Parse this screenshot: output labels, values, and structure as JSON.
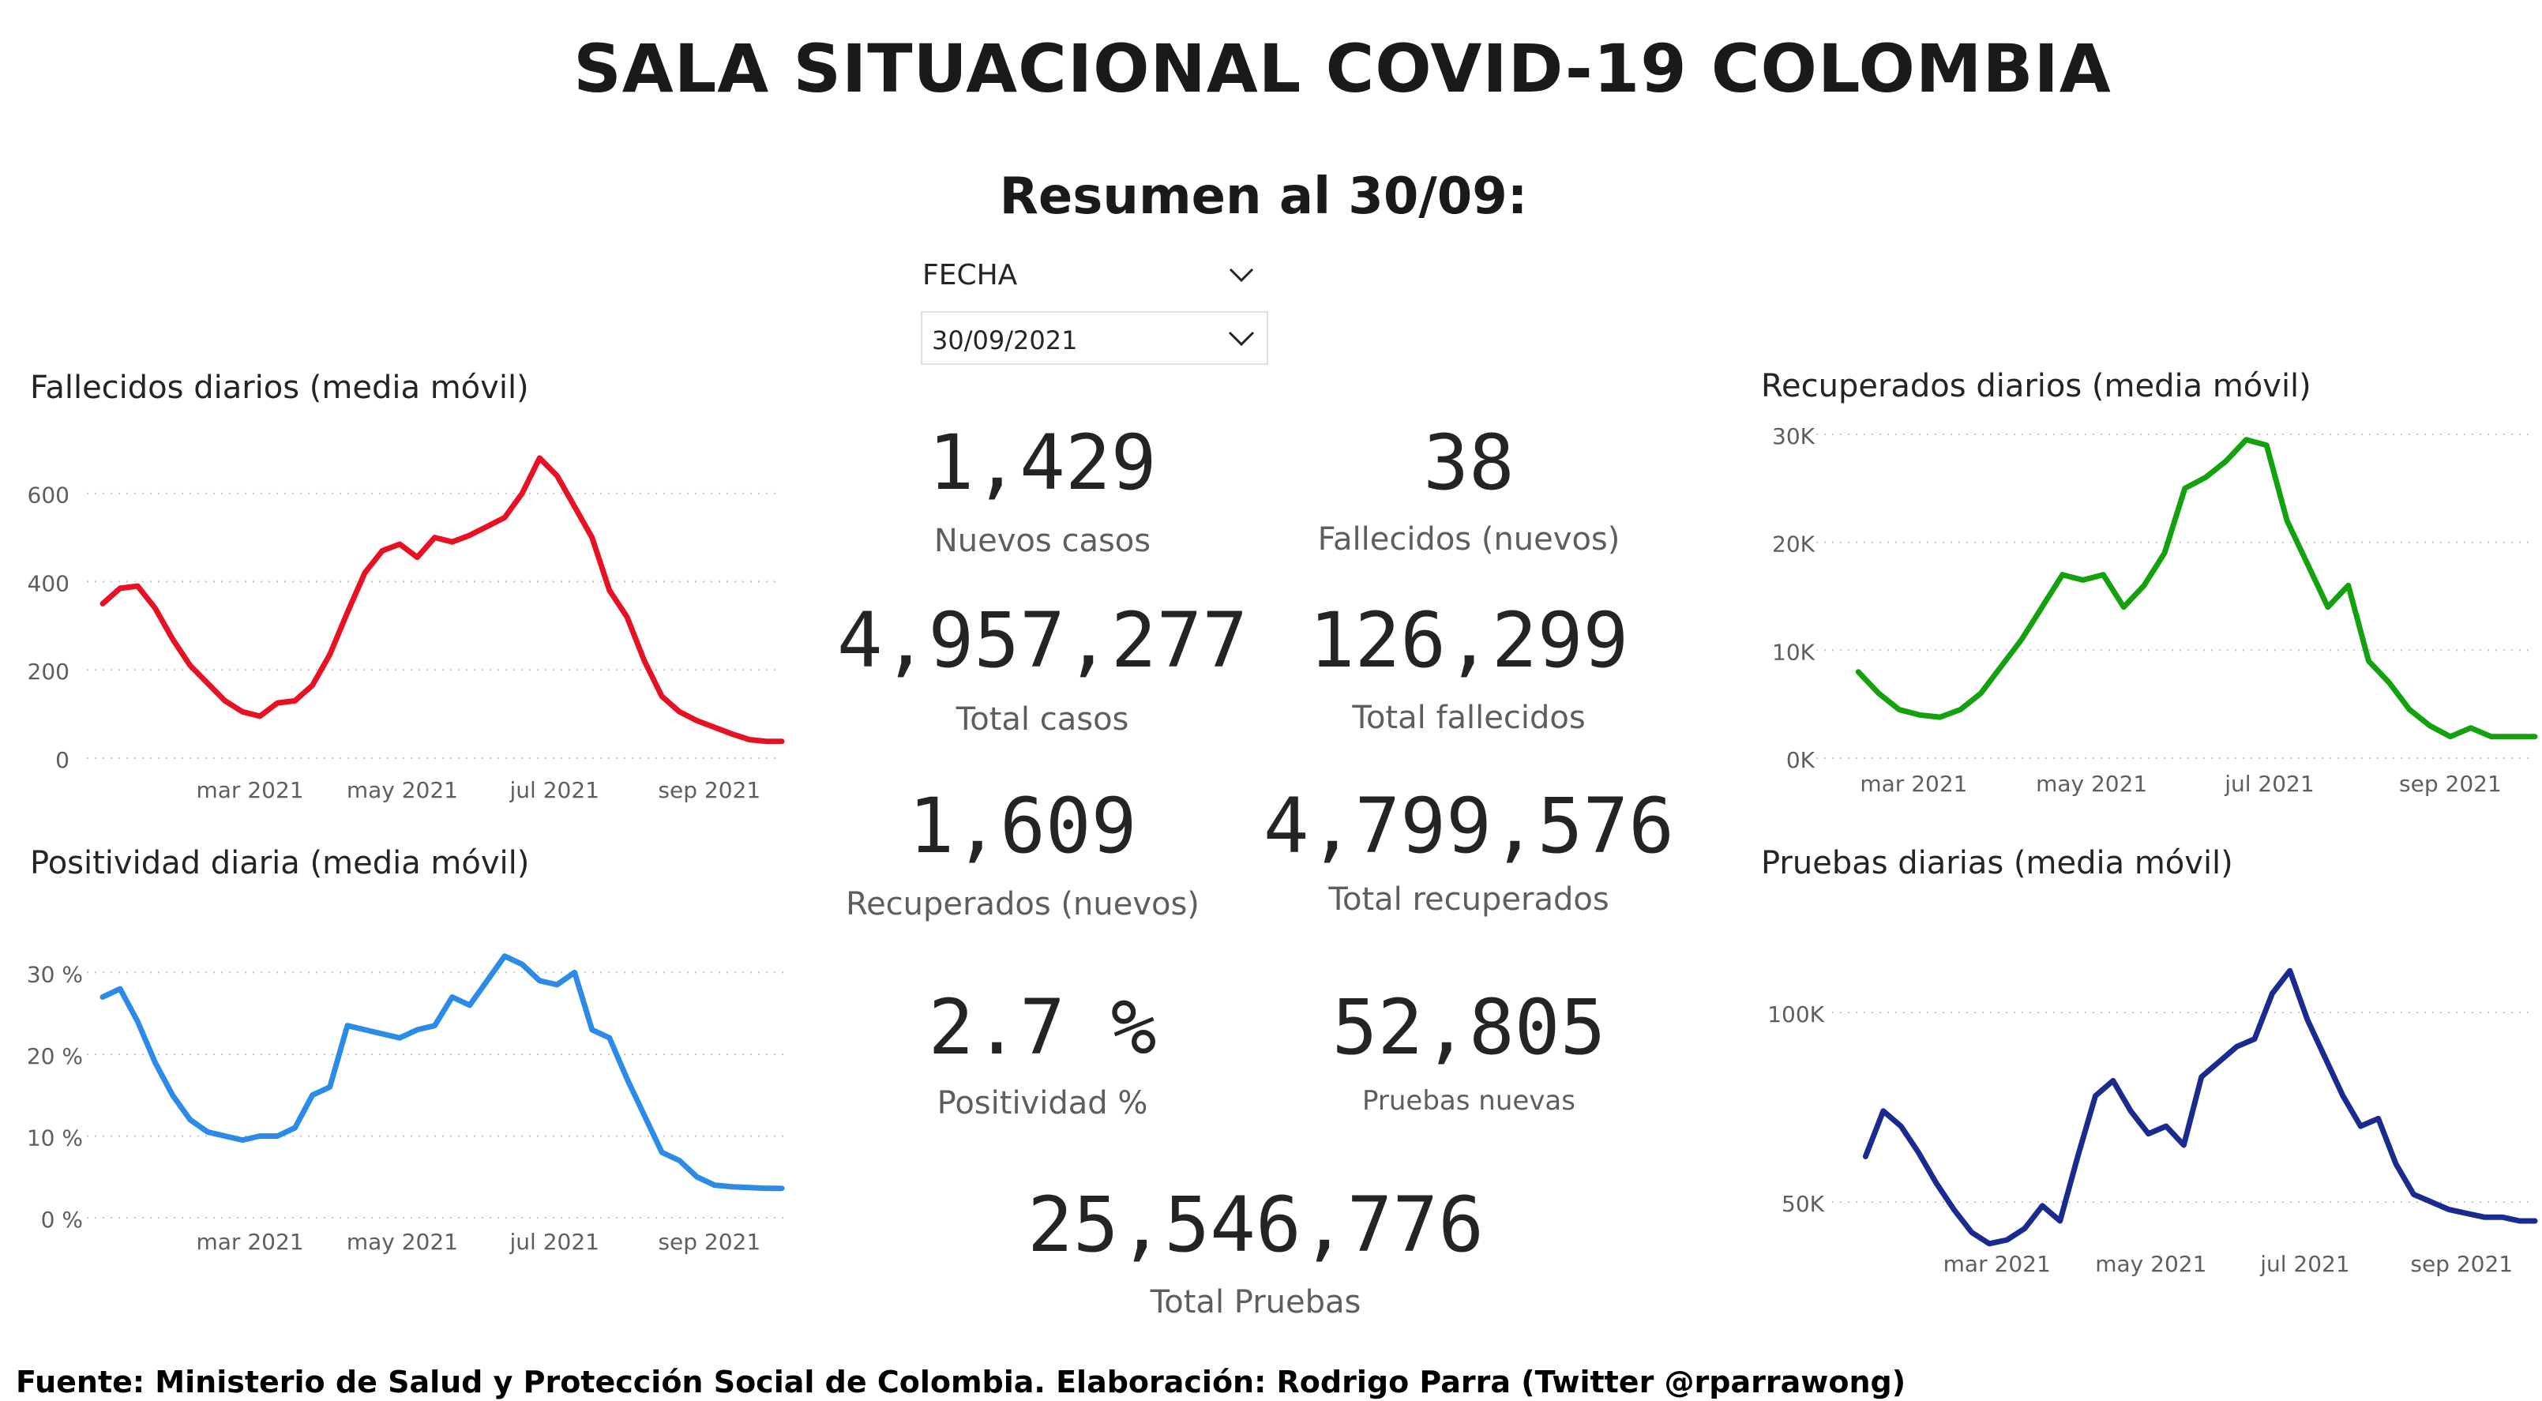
{
  "title": "SALA SITUACIONAL COVID-19 COLOMBIA",
  "subtitle": "Resumen al 30/09:",
  "slicer": {
    "label": "FECHA",
    "value": "30/09/2021"
  },
  "kpis": [
    {
      "value": "1,429",
      "label": "Nuevos casos"
    },
    {
      "value": "38",
      "label": "Fallecidos (nuevos)"
    },
    {
      "value": "4,957,277",
      "label": "Total casos"
    },
    {
      "value": "126,299",
      "label": "Total fallecidos"
    },
    {
      "value": "1,609",
      "label": "Recuperados (nuevos)"
    },
    {
      "value": "4,799,576",
      "label": "Total recuperados"
    },
    {
      "value": "2.7 %",
      "label": "Positividad %"
    },
    {
      "value": "52,805",
      "label": "Pruebas nuevas"
    },
    {
      "value": "25,546,776",
      "label": "Total Pruebas"
    }
  ],
  "footer": "Fuente: Ministerio de Salud y Protección Social de Colombia. Elaboración: Rodrigo Parra (Twitter @rparrawong)",
  "chart_data": [
    {
      "id": "fallecidos",
      "type": "line",
      "title": "Fallecidos diarios (media móvil)",
      "color": "#e81123",
      "ylim": [
        0,
        680
      ],
      "yticks": [
        0,
        200,
        400,
        600
      ],
      "ytick_labels": [
        "0",
        "200",
        "400",
        "600"
      ],
      "xtick_labels": [
        "mar 2021",
        "may 2021",
        "jul 2021",
        "sep 2021"
      ],
      "xtick_dates": [
        "2021-03-01",
        "2021-05-01",
        "2021-07-01",
        "2021-09-01"
      ],
      "xlim": [
        "2021-01-01",
        "2021-09-30"
      ],
      "grid": true,
      "x": [
        "2021-01-01",
        "2021-01-08",
        "2021-01-15",
        "2021-01-22",
        "2021-01-29",
        "2021-02-05",
        "2021-02-12",
        "2021-02-19",
        "2021-02-26",
        "2021-03-05",
        "2021-03-12",
        "2021-03-19",
        "2021-03-26",
        "2021-04-02",
        "2021-04-09",
        "2021-04-16",
        "2021-04-23",
        "2021-04-30",
        "2021-05-07",
        "2021-05-14",
        "2021-05-21",
        "2021-05-28",
        "2021-06-04",
        "2021-06-11",
        "2021-06-18",
        "2021-06-25",
        "2021-07-02",
        "2021-07-09",
        "2021-07-16",
        "2021-07-23",
        "2021-07-30",
        "2021-08-06",
        "2021-08-13",
        "2021-08-20",
        "2021-08-27",
        "2021-09-03",
        "2021-09-10",
        "2021-09-17",
        "2021-09-24",
        "2021-09-30"
      ],
      "y": [
        350,
        385,
        390,
        340,
        270,
        210,
        170,
        130,
        105,
        95,
        125,
        130,
        165,
        235,
        330,
        420,
        470,
        485,
        455,
        500,
        490,
        505,
        525,
        545,
        600,
        680,
        640,
        570,
        500,
        380,
        320,
        220,
        140,
        105,
        85,
        70,
        55,
        42,
        38,
        38
      ]
    },
    {
      "id": "positividad",
      "type": "line",
      "title": "Positividad diaria (media móvil)",
      "color": "#2b8be6",
      "ylim": [
        0,
        34
      ],
      "yticks": [
        0,
        10,
        20,
        30
      ],
      "ytick_labels": [
        "0 %",
        "10 %",
        "20 %",
        "30 %"
      ],
      "xtick_labels": [
        "mar 2021",
        "may 2021",
        "jul 2021",
        "sep 2021"
      ],
      "xtick_dates": [
        "2021-03-01",
        "2021-05-01",
        "2021-07-01",
        "2021-09-01"
      ],
      "xlim": [
        "2021-01-01",
        "2021-09-30"
      ],
      "grid": true,
      "x": [
        "2021-01-01",
        "2021-01-08",
        "2021-01-15",
        "2021-01-22",
        "2021-01-29",
        "2021-02-05",
        "2021-02-12",
        "2021-02-19",
        "2021-02-26",
        "2021-03-05",
        "2021-03-12",
        "2021-03-19",
        "2021-03-26",
        "2021-04-02",
        "2021-04-09",
        "2021-04-16",
        "2021-04-23",
        "2021-04-30",
        "2021-05-07",
        "2021-05-14",
        "2021-05-21",
        "2021-05-28",
        "2021-06-04",
        "2021-06-11",
        "2021-06-18",
        "2021-06-25",
        "2021-07-02",
        "2021-07-09",
        "2021-07-16",
        "2021-07-23",
        "2021-07-30",
        "2021-08-06",
        "2021-08-13",
        "2021-08-20",
        "2021-08-27",
        "2021-09-03",
        "2021-09-10",
        "2021-09-17",
        "2021-09-24",
        "2021-09-30"
      ],
      "y": [
        27,
        28,
        24,
        19,
        15,
        12,
        10.5,
        10,
        9.5,
        10,
        10,
        11,
        15,
        16,
        23.5,
        23,
        22.5,
        22,
        23,
        23.5,
        27,
        26,
        29,
        32,
        31,
        29,
        28.5,
        30,
        23,
        22,
        17,
        12.5,
        8,
        7,
        5,
        4,
        3.8,
        3.7,
        3.6,
        3.6
      ]
    },
    {
      "id": "recuperados",
      "type": "line",
      "title": "Recuperados diarios (media móvil)",
      "color": "#13a10e",
      "ylim": [
        0,
        30000
      ],
      "yticks": [
        0,
        10000,
        20000,
        30000
      ],
      "ytick_labels": [
        "0K",
        "10K",
        "20K",
        "30K"
      ],
      "xtick_labels": [
        "mar 2021",
        "may 2021",
        "jul 2021",
        "sep 2021"
      ],
      "xtick_dates": [
        "2021-03-01",
        "2021-05-01",
        "2021-07-01",
        "2021-09-01"
      ],
      "xlim": [
        "2021-02-01",
        "2021-09-30"
      ],
      "grid": true,
      "x": [
        "2021-02-10",
        "2021-02-17",
        "2021-02-24",
        "2021-03-03",
        "2021-03-10",
        "2021-03-17",
        "2021-03-24",
        "2021-03-31",
        "2021-04-07",
        "2021-04-14",
        "2021-04-21",
        "2021-04-28",
        "2021-05-05",
        "2021-05-12",
        "2021-05-19",
        "2021-05-26",
        "2021-06-02",
        "2021-06-09",
        "2021-06-16",
        "2021-06-23",
        "2021-06-30",
        "2021-07-07",
        "2021-07-14",
        "2021-07-21",
        "2021-07-28",
        "2021-08-04",
        "2021-08-11",
        "2021-08-18",
        "2021-08-25",
        "2021-09-01",
        "2021-09-08",
        "2021-09-15",
        "2021-09-22",
        "2021-09-30"
      ],
      "y": [
        8000,
        6000,
        4500,
        4000,
        3800,
        4500,
        6000,
        8500,
        11000,
        14000,
        17000,
        16500,
        17000,
        14000,
        16000,
        19000,
        25000,
        26000,
        27500,
        29500,
        29000,
        22000,
        18000,
        14000,
        16000,
        9000,
        7000,
        4500,
        3000,
        2000,
        2800,
        2000,
        2000,
        2000
      ]
    },
    {
      "id": "pruebas",
      "type": "line",
      "title": "Pruebas diarias (media móvil)",
      "color": "#1b2a8e",
      "ylim": [
        40000,
        115000
      ],
      "yticks": [
        50000,
        100000
      ],
      "ytick_labels": [
        "50K",
        "100K"
      ],
      "xtick_labels": [
        "mar 2021",
        "may 2021",
        "jul 2021",
        "sep 2021"
      ],
      "xtick_dates": [
        "2021-03-01",
        "2021-05-01",
        "2021-07-01",
        "2021-09-01"
      ],
      "xlim": [
        "2021-01-01",
        "2021-09-30"
      ],
      "grid": true,
      "x": [
        "2021-01-08",
        "2021-01-15",
        "2021-01-22",
        "2021-01-29",
        "2021-02-05",
        "2021-02-12",
        "2021-02-19",
        "2021-02-26",
        "2021-03-05",
        "2021-03-12",
        "2021-03-19",
        "2021-03-26",
        "2021-04-02",
        "2021-04-09",
        "2021-04-16",
        "2021-04-23",
        "2021-04-30",
        "2021-05-07",
        "2021-05-14",
        "2021-05-21",
        "2021-05-28",
        "2021-06-04",
        "2021-06-11",
        "2021-06-18",
        "2021-06-25",
        "2021-07-02",
        "2021-07-09",
        "2021-07-16",
        "2021-07-23",
        "2021-07-30",
        "2021-08-06",
        "2021-08-13",
        "2021-08-20",
        "2021-08-27",
        "2021-09-03",
        "2021-09-10",
        "2021-09-17",
        "2021-09-24",
        "2021-09-30"
      ],
      "y": [
        62000,
        74000,
        70000,
        63000,
        55000,
        48000,
        42000,
        39000,
        40000,
        43000,
        49000,
        45000,
        62000,
        78000,
        82000,
        74000,
        68000,
        70000,
        65000,
        83000,
        87000,
        91000,
        93000,
        105000,
        111000,
        98000,
        88000,
        78000,
        70000,
        72000,
        60000,
        52000,
        50000,
        48000,
        47000,
        46000,
        46000,
        45000,
        45000
      ]
    }
  ]
}
